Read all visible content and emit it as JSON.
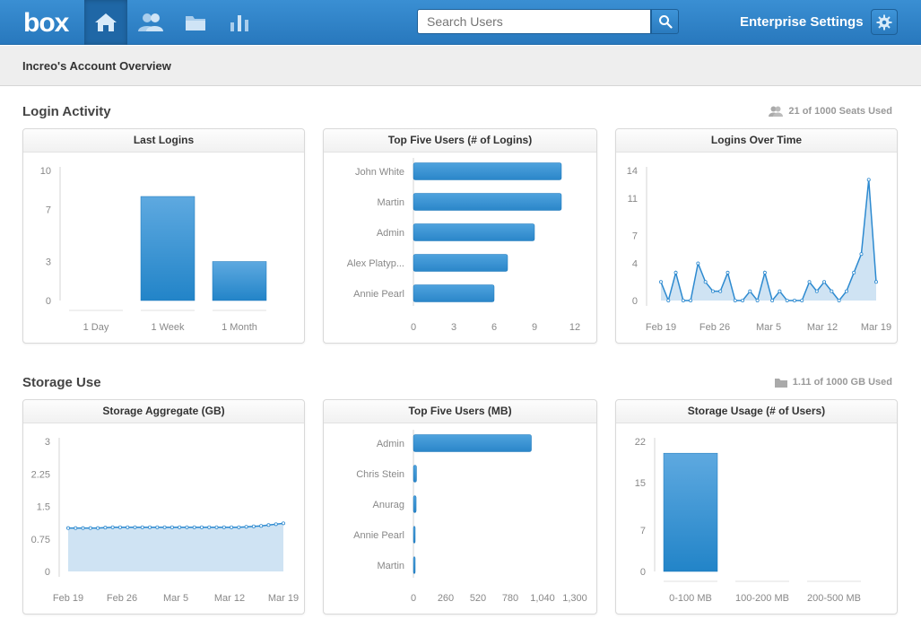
{
  "topbar": {
    "logo_text": "box",
    "nav": [
      {
        "name": "home-icon"
      },
      {
        "name": "users-icon"
      },
      {
        "name": "folder-icon"
      },
      {
        "name": "reports-icon"
      }
    ],
    "search_placeholder": "Search Users",
    "enterprise_settings_label": "Enterprise Settings"
  },
  "subheader": {
    "title": "Increo's Account Overview"
  },
  "login_section": {
    "title": "Login Activity",
    "seats_label": "21 of 1000 Seats Used"
  },
  "storage_section": {
    "title": "Storage Use",
    "storage_label": "1.11 of 1000 GB Used"
  },
  "panels": {
    "last_logins": "Last Logins",
    "top_users_logins": "Top Five Users (# of Logins)",
    "logins_over_time": "Logins Over Time",
    "storage_aggregate": "Storage Aggregate (GB)",
    "top_users_storage": "Top Five Users (MB)",
    "storage_usage": "Storage Usage (# of Users)"
  },
  "colors": {
    "accent": "#2d8ad0",
    "area_fill": "#cfe3f3",
    "bar_top": "#5ea9e0",
    "bar_bottom": "#2284c8"
  },
  "chart_data": [
    {
      "id": "last_logins",
      "type": "bar",
      "title": "Last Logins",
      "categories": [
        "1 Day",
        "1 Week",
        "1 Month"
      ],
      "values": [
        0,
        8,
        3
      ],
      "yticks": [
        "10",
        "7",
        "3",
        "0"
      ],
      "ylim": [
        0,
        10
      ]
    },
    {
      "id": "top_users_logins",
      "type": "bar",
      "orientation": "horizontal",
      "title": "Top Five Users (# of Logins)",
      "categories": [
        "John White",
        "Martin",
        "Admin",
        "Alex Platyp...",
        "Annie Pearl"
      ],
      "values": [
        11,
        11,
        9,
        7,
        6
      ],
      "xticks": [
        "0",
        "3",
        "6",
        "9",
        "12"
      ],
      "xlim": [
        0,
        12
      ]
    },
    {
      "id": "logins_over_time",
      "type": "area",
      "title": "Logins Over Time",
      "values": [
        2,
        0,
        3,
        0,
        0,
        4,
        2,
        1,
        1,
        3,
        0,
        0,
        1,
        0,
        3,
        0,
        1,
        0,
        0,
        0,
        2,
        1,
        2,
        1,
        0,
        1,
        3,
        5,
        13,
        2
      ],
      "xticks": [
        "Feb 19",
        "Feb 26",
        "Mar 5",
        "Mar 12",
        "Mar 19"
      ],
      "yticks": [
        "14",
        "11",
        "7",
        "4",
        "0"
      ],
      "ylim": [
        0,
        14
      ]
    },
    {
      "id": "storage_aggregate",
      "type": "area",
      "title": "Storage Aggregate (GB)",
      "values": [
        1.0,
        1.0,
        1.0,
        1.0,
        1.0,
        1.01,
        1.02,
        1.02,
        1.02,
        1.02,
        1.02,
        1.02,
        1.02,
        1.02,
        1.02,
        1.02,
        1.02,
        1.02,
        1.02,
        1.02,
        1.02,
        1.02,
        1.02,
        1.02,
        1.03,
        1.04,
        1.05,
        1.07,
        1.09,
        1.11
      ],
      "xticks": [
        "Feb 19",
        "Feb 26",
        "Mar 5",
        "Mar 12",
        "Mar 19"
      ],
      "yticks": [
        "3",
        "2.25",
        "1.5",
        "0.75",
        "0"
      ],
      "ylim": [
        0,
        3
      ]
    },
    {
      "id": "top_users_storage",
      "type": "bar",
      "orientation": "horizontal",
      "title": "Top Five Users (MB)",
      "categories": [
        "Admin",
        "Chris Stein",
        "Anurag",
        "Annie Pearl",
        "Martin"
      ],
      "values": [
        950,
        25,
        22,
        8,
        4
      ],
      "xticks": [
        "0",
        "260",
        "520",
        "780",
        "1,040",
        "1,300"
      ],
      "xlim": [
        0,
        1300
      ]
    },
    {
      "id": "storage_usage",
      "type": "bar",
      "title": "Storage Usage (# of Users)",
      "categories": [
        "0-100 MB",
        "100-200 MB",
        "200-500 MB"
      ],
      "values": [
        20,
        0,
        0
      ],
      "yticks": [
        "22",
        "15",
        "7",
        "0"
      ],
      "ylim": [
        0,
        22
      ]
    }
  ]
}
